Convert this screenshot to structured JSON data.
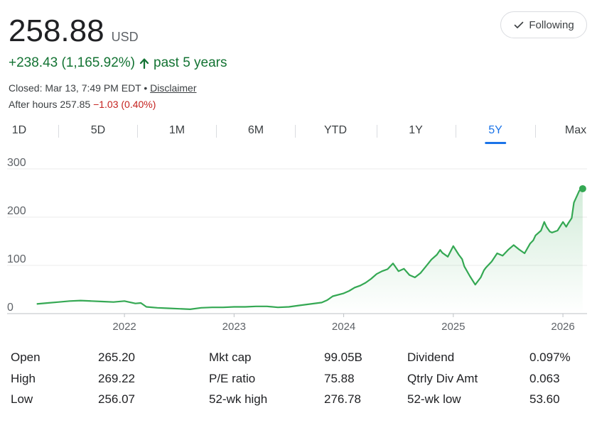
{
  "quote": {
    "price": "258.88",
    "currency": "USD",
    "change": "+238.43 (1,165.92%)",
    "period": "past 5 years",
    "closed_text": "Closed: Mar 13, 7:49 PM EDT •",
    "disclaimer": "Disclaimer",
    "after_hours_label": "After hours 257.85",
    "after_hours_change": "−1.03 (0.40%)",
    "positive_color": "#137333",
    "negative_color": "#c5221f"
  },
  "follow_button": {
    "label": "Following",
    "icon": "check-icon"
  },
  "tabs": [
    {
      "label": "1D",
      "active": false
    },
    {
      "label": "5D",
      "active": false
    },
    {
      "label": "1M",
      "active": false
    },
    {
      "label": "6M",
      "active": false
    },
    {
      "label": "YTD",
      "active": false
    },
    {
      "label": "1Y",
      "active": false
    },
    {
      "label": "5Y",
      "active": true
    },
    {
      "label": "Max",
      "active": false
    }
  ],
  "chart_data": {
    "type": "area",
    "title": "",
    "xlabel": "",
    "ylabel": "",
    "ylim": [
      0,
      300
    ],
    "xlim": [
      2021.15,
      2026.22
    ],
    "yticks": [
      0,
      100,
      200,
      300
    ],
    "xticks": [
      {
        "label": "2022",
        "value": 2022.0
      },
      {
        "label": "2023",
        "value": 2023.0
      },
      {
        "label": "2024",
        "value": 2024.0
      },
      {
        "label": "2025",
        "value": 2025.0
      },
      {
        "label": "2026",
        "value": 2026.0
      }
    ],
    "grid": true,
    "legend": "none",
    "line_color": "#34a853",
    "series": [
      {
        "x": [
          2021.2,
          2021.3,
          2021.4,
          2021.5,
          2021.6,
          2021.7,
          2021.8,
          2021.9,
          2022.0,
          2022.1,
          2022.15,
          2022.2,
          2022.3,
          2022.4,
          2022.5,
          2022.6,
          2022.7,
          2022.8,
          2022.9,
          2023.0,
          2023.1,
          2023.2,
          2023.3,
          2023.4,
          2023.5,
          2023.6,
          2023.7,
          2023.8,
          2023.85,
          2023.9,
          2024.0,
          2024.05,
          2024.1,
          2024.15,
          2024.2,
          2024.25,
          2024.3,
          2024.35,
          2024.4,
          2024.45,
          2024.5,
          2024.55,
          2024.6,
          2024.65,
          2024.7,
          2024.75,
          2024.8,
          2024.85,
          2024.88,
          2024.9,
          2024.95,
          2025.0,
          2025.05,
          2025.08,
          2025.1,
          2025.15,
          2025.2,
          2025.25,
          2025.28,
          2025.3,
          2025.35,
          2025.4,
          2025.45,
          2025.5,
          2025.55,
          2025.6,
          2025.65,
          2025.7,
          2025.73,
          2025.75,
          2025.8,
          2025.83,
          2025.85,
          2025.88,
          2025.9,
          2025.95,
          2026.0,
          2026.03,
          2026.05,
          2026.08,
          2026.1,
          2026.13,
          2026.15,
          2026.18
        ],
        "values": [
          20,
          22,
          24,
          26,
          27,
          26,
          25,
          24,
          26,
          21,
          22,
          14,
          12,
          11,
          10,
          9,
          12,
          13,
          13,
          14,
          14,
          15,
          15,
          13,
          14,
          17,
          20,
          23,
          28,
          36,
          42,
          47,
          54,
          58,
          64,
          72,
          82,
          88,
          92,
          104,
          88,
          93,
          80,
          75,
          84,
          98,
          112,
          122,
          132,
          126,
          118,
          140,
          122,
          113,
          98,
          78,
          60,
          75,
          90,
          96,
          108,
          125,
          120,
          132,
          142,
          133,
          125,
          145,
          152,
          162,
          172,
          190,
          180,
          170,
          168,
          172,
          190,
          180,
          188,
          198,
          230,
          245,
          255,
          258.88
        ]
      }
    ]
  },
  "stats": {
    "rows": [
      [
        {
          "label": "Open",
          "value": "265.20"
        },
        {
          "label": "Mkt cap",
          "value": "99.05B"
        },
        {
          "label": "Dividend",
          "value": "0.097%"
        }
      ],
      [
        {
          "label": "High",
          "value": "269.22"
        },
        {
          "label": "P/E ratio",
          "value": "75.88"
        },
        {
          "label": "Qtrly Div Amt",
          "value": "0.063"
        }
      ],
      [
        {
          "label": "Low",
          "value": "256.07"
        },
        {
          "label": "52-wk high",
          "value": "276.78"
        },
        {
          "label": "52-wk low",
          "value": "53.60"
        }
      ]
    ]
  }
}
